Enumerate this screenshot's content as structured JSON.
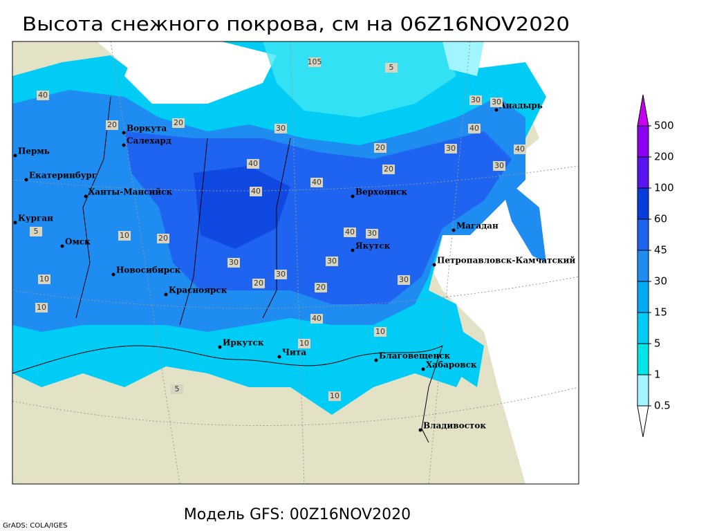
{
  "title": "Высота снежного покрова, см на 06Z16NOV2020",
  "subtitle": "Модель GFS: 00Z16NOV2020",
  "credit": "GrADS: COLA/IGES",
  "colorbar": {
    "levels": [
      0.5,
      1,
      5,
      15,
      30,
      45,
      60,
      100,
      200,
      500
    ],
    "colors": [
      "#ffffff",
      "#a0f5ff",
      "#00e6e6",
      "#00ccf5",
      "#00aaf5",
      "#1e8cf0",
      "#1e64f0",
      "#0a3cdc",
      "#5a14f0",
      "#8c00f0",
      "#c800f0"
    ]
  },
  "cities": [
    "Воркута",
    "Салехард",
    "Пермь",
    "Екатеринбург",
    "Ханты-Мансийск",
    "Курган",
    "Омск",
    "Новосибирск",
    "Красноярск",
    "Иркутск",
    "Чита",
    "Благовещенск",
    "Хабаровск",
    "Владивосток",
    "Якутск",
    "Верхоянск",
    "Магадан",
    "Петропавловск-Камчатский",
    "Анадырь"
  ],
  "contour_labels": [
    105,
    5,
    40,
    30,
    30,
    20,
    20,
    30,
    40,
    30,
    20,
    40,
    40,
    20,
    40,
    30,
    40,
    20,
    10,
    30,
    30,
    20,
    30,
    10,
    10,
    10,
    10,
    5,
    5,
    40,
    30,
    30,
    20,
    40,
    10
  ]
}
